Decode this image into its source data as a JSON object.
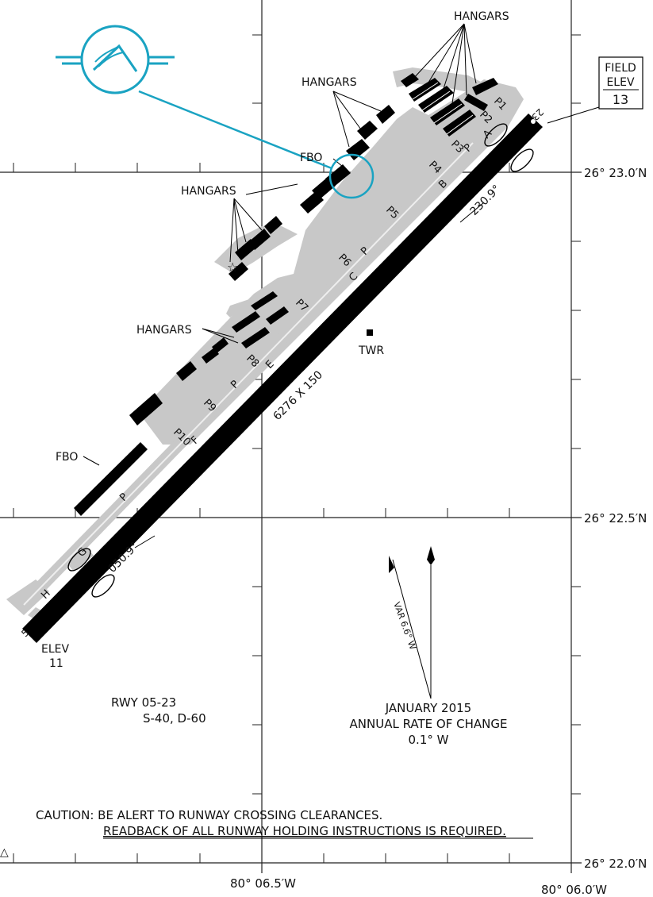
{
  "field_elev": {
    "line1": "FIELD",
    "line2": "ELEV",
    "value": "13"
  },
  "labels": {
    "hangars": "HANGARS",
    "fbo": "FBO",
    "tower": "TWR",
    "elev_label": "ELEV",
    "elev_value": "11",
    "runway_dims": "6276 X 150",
    "rwy_end_sw": "5",
    "rwy_end_ne": "23",
    "heading_ne": "230.9°",
    "heading_sw": "050.9°"
  },
  "taxiways": [
    "A",
    "B",
    "C",
    "E",
    "F",
    "G",
    "H",
    "P"
  ],
  "parking": [
    "P1",
    "P2",
    "P3",
    "P4",
    "P5",
    "P6",
    "P7",
    "P8",
    "P9",
    "P10"
  ],
  "coordinates": {
    "lat_top": "26° 23.0′N",
    "lat_mid": "26° 22.5′N",
    "lat_bot": "26° 22.0′N",
    "lon_left": "80° 06.5′W",
    "lon_right": "80° 06.0′W"
  },
  "runway_info": {
    "line1": "RWY 05-23",
    "line2": "S-40, D-60"
  },
  "magnetic": {
    "variation": "VAR 6.6° W",
    "date": "JANUARY 2015",
    "annual": "ANNUAL RATE OF CHANGE",
    "rate": "0.1° W"
  },
  "caution": {
    "line1": "CAUTION: BE ALERT TO RUNWAY CROSSING CLEARANCES.",
    "line2": "READBACK OF ALL RUNWAY HOLDING INSTRUCTIONS IS REQUIRED."
  },
  "colors": {
    "runway": "#000000",
    "apron": "#c8c8c8",
    "callout": "#1aa3c2"
  },
  "icons": [
    "airport-logo-icon",
    "beacon-star-icon",
    "north-arrow-icon",
    "magnetic-north-arrow-icon"
  ]
}
